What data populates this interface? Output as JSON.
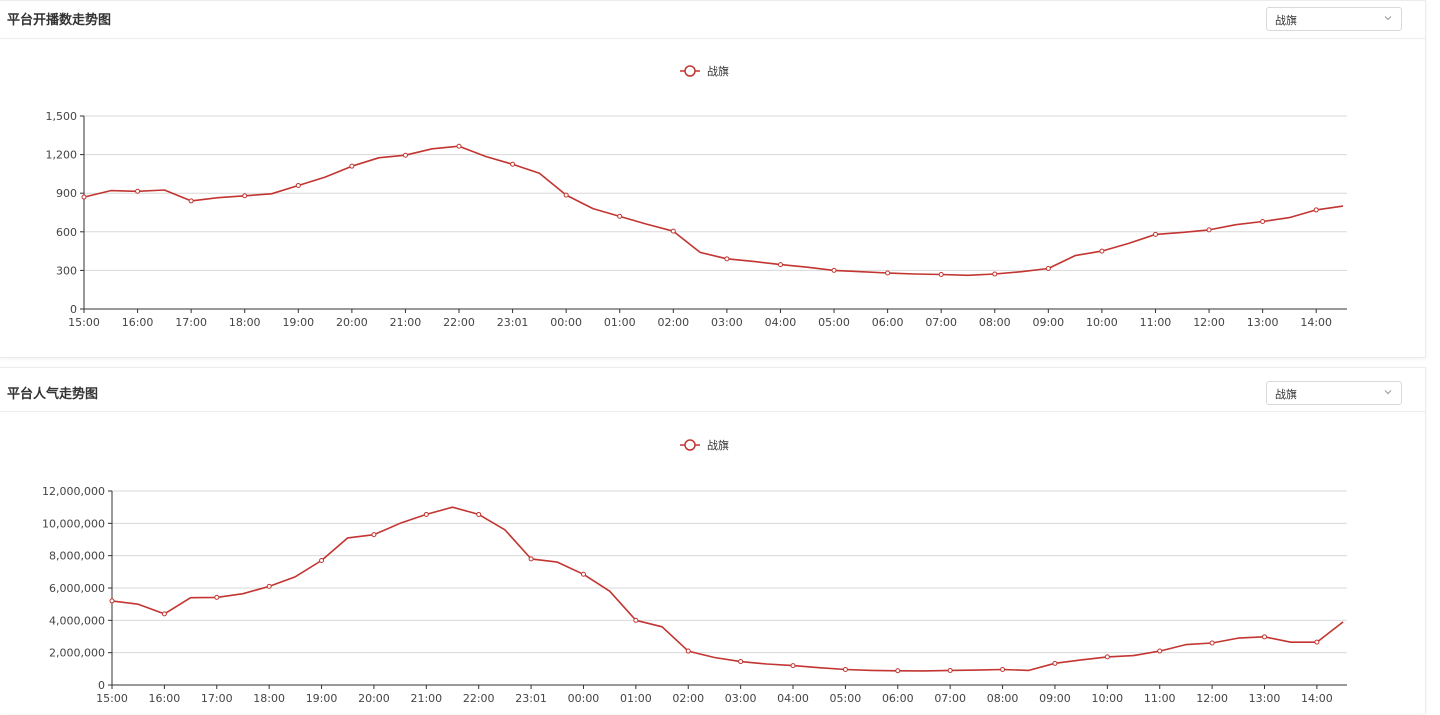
{
  "panels": [
    {
      "title": "平台开播数走势图",
      "select": {
        "value": "战旗"
      }
    },
    {
      "title": "平台人气走势图",
      "select": {
        "value": "战旗"
      }
    }
  ],
  "chart_data": [
    {
      "type": "line",
      "legend": "top-center",
      "grid": true,
      "color": "#c23531",
      "x_tick_labels": [
        "15:00",
        "16:00",
        "17:00",
        "18:00",
        "19:00",
        "20:00",
        "21:00",
        "22:00",
        "23:01",
        "00:00",
        "01:00",
        "02:00",
        "03:00",
        "04:00",
        "05:00",
        "06:00",
        "07:00",
        "08:00",
        "09:00",
        "10:00",
        "11:00",
        "12:00",
        "13:00",
        "14:00"
      ],
      "y_ticks": [
        0,
        300,
        600,
        900,
        1200,
        1500
      ],
      "y_tick_labels": [
        "0",
        "300",
        "600",
        "900",
        "1,200",
        "1,500"
      ],
      "ylim": [
        0,
        1500
      ],
      "series": [
        {
          "name": "战旗",
          "values": [
            870,
            920,
            915,
            925,
            840,
            865,
            880,
            895,
            960,
            1025,
            1110,
            1175,
            1195,
            1245,
            1265,
            1185,
            1125,
            1055,
            885,
            780,
            720,
            660,
            605,
            440,
            390,
            370,
            345,
            325,
            300,
            290,
            280,
            272,
            268,
            262,
            272,
            290,
            315,
            415,
            450,
            510,
            580,
            595,
            615,
            655,
            680,
            710,
            770,
            800
          ]
        }
      ]
    },
    {
      "type": "line",
      "legend": "top-center",
      "grid": true,
      "color": "#c23531",
      "x_tick_labels": [
        "15:00",
        "16:00",
        "17:00",
        "18:00",
        "19:00",
        "20:00",
        "21:00",
        "22:00",
        "23:01",
        "00:00",
        "01:00",
        "02:00",
        "03:00",
        "04:00",
        "05:00",
        "06:00",
        "07:00",
        "08:00",
        "09:00",
        "10:00",
        "11:00",
        "12:00",
        "13:00",
        "14:00"
      ],
      "y_ticks": [
        0,
        2000000,
        4000000,
        6000000,
        8000000,
        10000000,
        12000000
      ],
      "y_tick_labels": [
        "0",
        "2,000,000",
        "4,000,000",
        "6,000,000",
        "8,000,000",
        "10,000,000",
        "12,000,000"
      ],
      "ylim": [
        0,
        12000000
      ],
      "series": [
        {
          "name": "战旗",
          "values": [
            5200000,
            5000000,
            4400000,
            5400000,
            5420000,
            5650000,
            6100000,
            6700000,
            7700000,
            9100000,
            9300000,
            10000000,
            10550000,
            11000000,
            10550000,
            9600000,
            7800000,
            7600000,
            6850000,
            5800000,
            4000000,
            3600000,
            2100000,
            1700000,
            1450000,
            1300000,
            1200000,
            1070000,
            960000,
            900000,
            880000,
            870000,
            900000,
            920000,
            960000,
            900000,
            1340000,
            1550000,
            1740000,
            1820000,
            2100000,
            2500000,
            2600000,
            2900000,
            2980000,
            2650000,
            2650000,
            3900000
          ]
        }
      ]
    }
  ]
}
